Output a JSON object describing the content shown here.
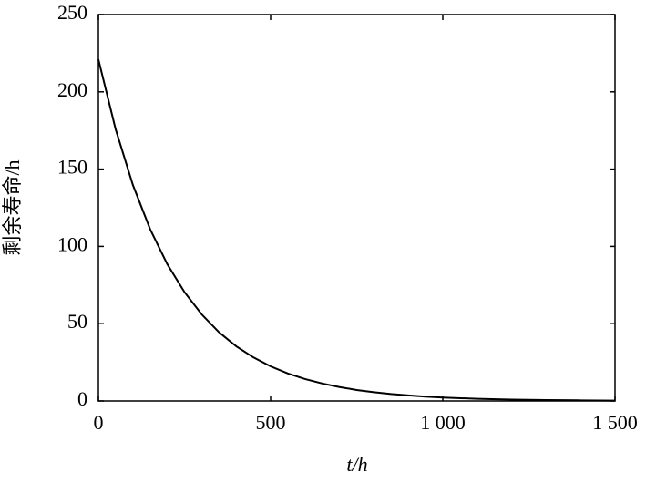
{
  "chart_data": {
    "type": "line",
    "x_label": "t/h",
    "y_label": "剩余寿命/h",
    "x": [
      0,
      50,
      100,
      150,
      200,
      250,
      300,
      350,
      400,
      450,
      500,
      550,
      600,
      650,
      700,
      750,
      800,
      850,
      900,
      950,
      1000,
      1100,
      1200,
      1300,
      1400,
      1500
    ],
    "series": [
      {
        "color": "#000000",
        "values": [
          221,
          175.8,
          139.8,
          111.2,
          88.5,
          70.4,
          56.0,
          44.5,
          35.4,
          28.2,
          22.4,
          17.8,
          14.2,
          11.3,
          9.0,
          7.1,
          5.7,
          4.5,
          3.6,
          2.8,
          2.2,
          1.4,
          0.9,
          0.6,
          0.4,
          0.2
        ]
      }
    ],
    "xlim": [
      0,
      1500
    ],
    "xticks": [
      0,
      500,
      {
        "value": 1000,
        "label": "1 000"
      },
      {
        "value": 1500,
        "label": "1 500"
      }
    ],
    "ylim": [
      0,
      250
    ],
    "yticks": [
      0,
      50,
      100,
      150,
      200,
      250
    ],
    "grid": false
  }
}
